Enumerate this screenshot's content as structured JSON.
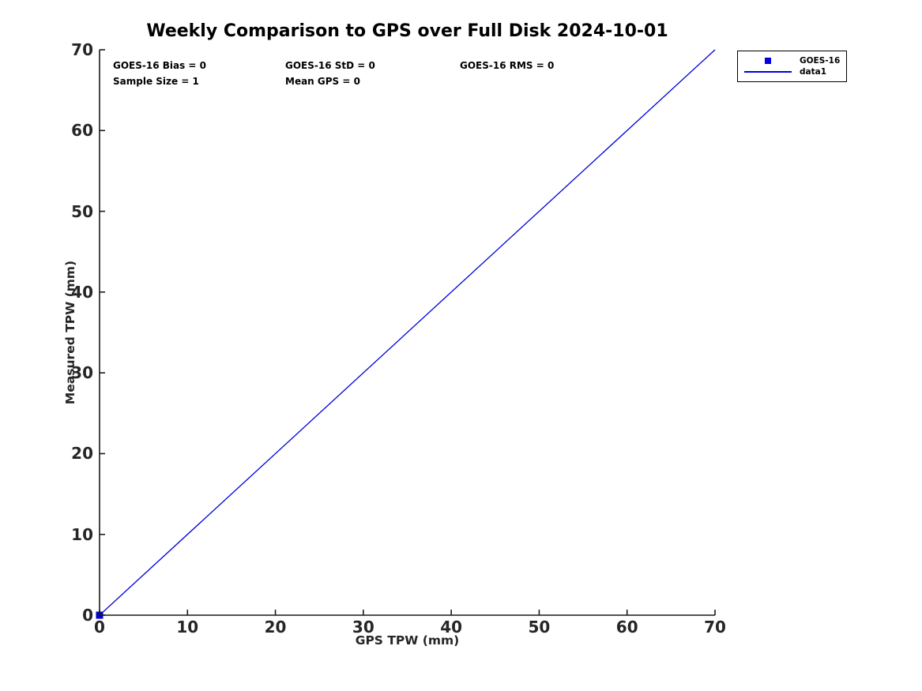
{
  "figure": {
    "background": "#ffffff"
  },
  "chart_data": {
    "type": "scatter",
    "title": "Weekly Comparison to GPS over Full Disk 2024-10-01",
    "xlabel": "GPS TPW (mm)",
    "ylabel": "Measured TPW (mm)",
    "xlim": [
      0,
      70
    ],
    "ylim": [
      0,
      70
    ],
    "xticks": [
      0,
      10,
      20,
      30,
      40,
      50,
      60,
      70
    ],
    "yticks": [
      0,
      10,
      20,
      30,
      40,
      50,
      60,
      70
    ],
    "grid": false,
    "axis_color": "#1a1a1a",
    "tick_label_color": "#262626",
    "series": [
      {
        "name": "GOES-16",
        "kind": "scatter",
        "marker": "square",
        "color": "#0000e0",
        "edge_color": "#0000b0",
        "points": [
          [
            0,
            0
          ]
        ]
      },
      {
        "name": "data1",
        "kind": "line",
        "color": "#0000dd",
        "points": [
          [
            0,
            0
          ],
          [
            70,
            70
          ]
        ]
      }
    ],
    "legend": {
      "position": "outside-top-right",
      "entries": [
        {
          "label": "GOES-16",
          "swatch": "square"
        },
        {
          "label": "data1",
          "swatch": "line"
        }
      ]
    },
    "annotations": [
      "GOES-16 Bias = 0",
      "GOES-16 StD = 0",
      "GOES-16 RMS = 0",
      "Sample Size = 1",
      "Mean GPS = 0"
    ]
  }
}
